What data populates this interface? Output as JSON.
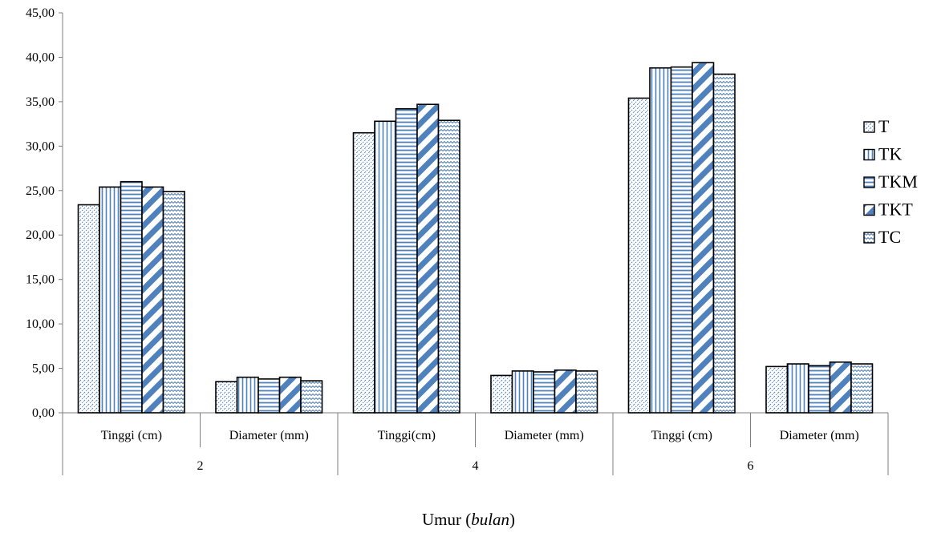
{
  "chart_data": {
    "type": "bar",
    "groups": [
      "2",
      "4",
      "6"
    ],
    "categories": [
      "Tinggi (cm)",
      "Diameter (mm)",
      "Tinggi(cm)",
      "Diameter (mm)",
      "Tinggi (cm)",
      "Diameter (mm)"
    ],
    "series": [
      {
        "name": "T",
        "values": [
          23.4,
          3.5,
          31.5,
          4.2,
          35.4,
          5.2
        ]
      },
      {
        "name": "TK",
        "values": [
          25.4,
          4.0,
          32.8,
          4.7,
          38.8,
          5.5
        ]
      },
      {
        "name": "TKM",
        "values": [
          26.0,
          3.8,
          34.2,
          4.6,
          38.9,
          5.3
        ]
      },
      {
        "name": "TKT",
        "values": [
          25.4,
          4.0,
          34.7,
          4.8,
          39.4,
          5.7
        ]
      },
      {
        "name": "TC",
        "values": [
          24.9,
          3.6,
          32.9,
          4.7,
          38.1,
          5.5
        ]
      }
    ],
    "yticks": [
      "0,00",
      "5,00",
      "10,00",
      "15,00",
      "20,00",
      "25,00",
      "30,00",
      "35,00",
      "40,00",
      "45,00"
    ],
    "ylim": [
      0,
      45
    ],
    "xlabel": "Umur",
    "xlabel_italic": "bulan",
    "legend_position": "right",
    "grid": false,
    "colors": {
      "fill": "#4f81bd",
      "stroke": "#000000"
    },
    "patterns": [
      "dots-diagonal",
      "vertical-lines",
      "horizontal-lines",
      "wide-diagonal",
      "zigzag"
    ]
  }
}
